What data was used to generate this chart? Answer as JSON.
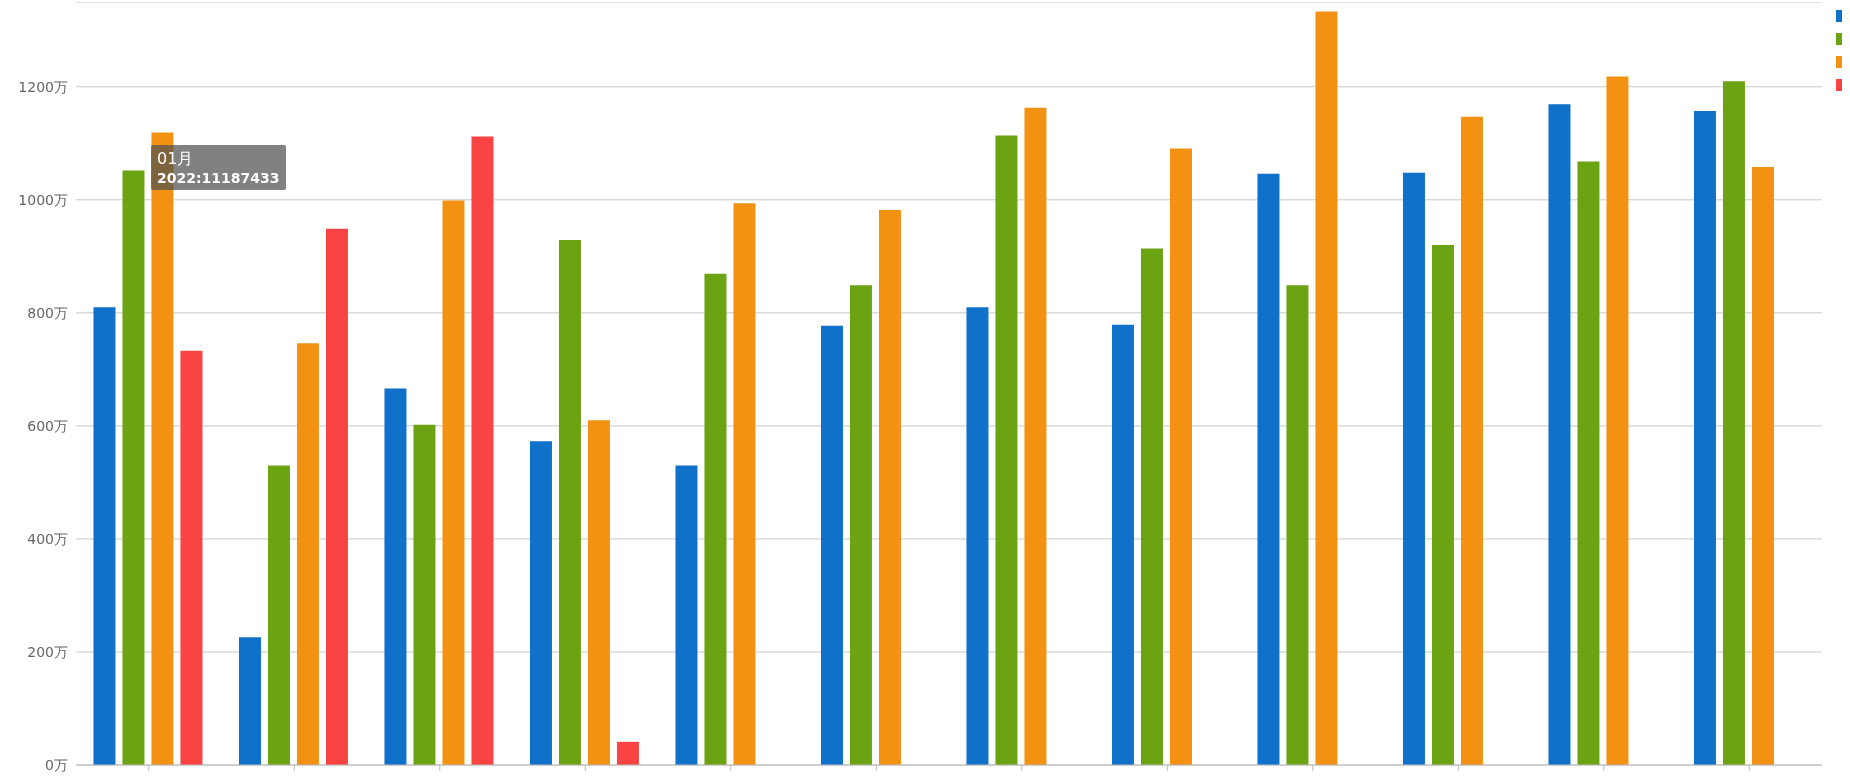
{
  "chart_data": {
    "type": "bar",
    "categories": [
      null,
      null,
      null,
      null,
      null,
      null,
      null,
      null,
      null,
      null,
      null,
      null
    ],
    "series": [
      {
        "color": "#0f71c9",
        "values": [
          810,
          226,
          666,
          573,
          530,
          777,
          810,
          779,
          1046,
          1048,
          1169,
          1157
        ]
      },
      {
        "color": "#6ca312",
        "values": [
          1052,
          530,
          602,
          929,
          869,
          849,
          1114,
          914,
          849,
          920,
          1068,
          1210
        ]
      },
      {
        "color": "#f39212",
        "values": [
          1119,
          746,
          999,
          610,
          994,
          982,
          1163,
          1091,
          1333,
          1147,
          1218,
          1058
        ]
      },
      {
        "color": "#fa4444",
        "values": [
          733,
          949,
          1112,
          41,
          null,
          null,
          null,
          null,
          null,
          null,
          null,
          null
        ]
      }
    ],
    "ylim": [
      0,
      1350
    ],
    "yticks": [
      {
        "value": 0,
        "label": "0万"
      },
      {
        "value": 200,
        "label": "200万"
      },
      {
        "value": 400,
        "label": "400万"
      },
      {
        "value": 600,
        "label": "600万"
      },
      {
        "value": 800,
        "label": "800万"
      },
      {
        "value": 1000,
        "label": "1000万"
      },
      {
        "value": 1200,
        "label": "1200万"
      }
    ],
    "grid": "y",
    "annotations": [
      "01月",
      "2022:11187433"
    ]
  }
}
